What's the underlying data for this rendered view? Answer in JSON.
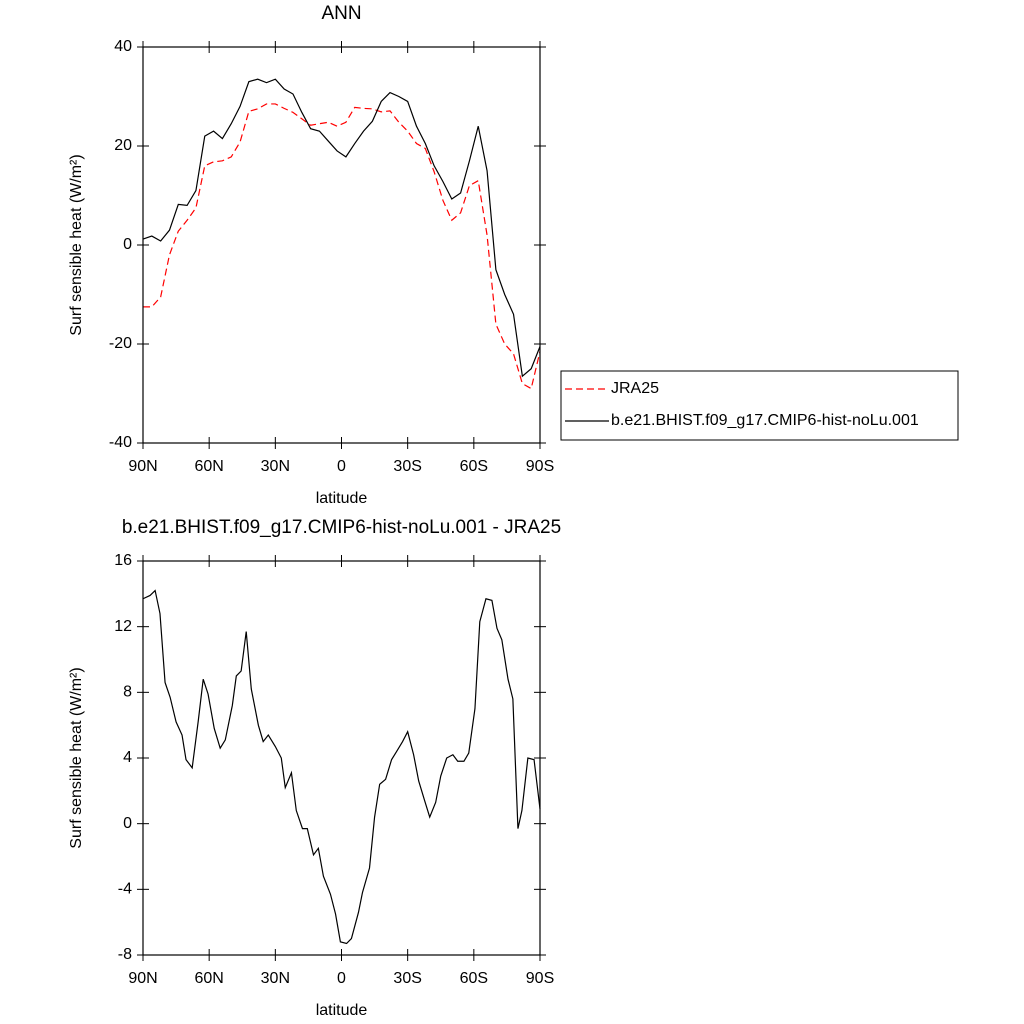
{
  "chart_data": [
    {
      "type": "line",
      "title": "ANN",
      "xlabel": "latitude",
      "ylabel": "Surf sensible heat (W/m²)",
      "x": [
        90,
        86,
        82,
        78,
        74,
        70,
        66,
        62,
        58,
        54,
        50,
        46,
        42,
        38,
        34,
        30,
        26,
        22,
        18,
        14,
        10,
        6,
        2,
        -2,
        -6,
        -10,
        -14,
        -18,
        -22,
        -26,
        -30,
        -34,
        -38,
        -42,
        -46,
        -50,
        -54,
        -58,
        -62,
        -66,
        -70,
        -74,
        -78,
        -82,
        -86,
        -90
      ],
      "series": [
        {
          "name": "JRA25",
          "color": "#ff0000",
          "line_style": "dashed",
          "values": [
            -12.5,
            -12.5,
            -10.5,
            -2,
            2.8,
            5,
            7.5,
            16,
            16.8,
            17,
            17.8,
            20.8,
            27,
            27.5,
            28.5,
            28.5,
            27.6,
            26.8,
            25.5,
            24.2,
            24.5,
            24.8,
            24,
            24.8,
            27.8,
            27.6,
            27.5,
            26.9,
            27.1,
            24.8,
            23,
            20.5,
            19.5,
            14.8,
            9,
            5,
            6.5,
            12,
            13,
            2,
            -16,
            -20,
            -22,
            -28,
            -29,
            -21.5
          ]
        },
        {
          "name": "b.e21.BHIST.f09_g17.CMIP6-hist-noLu.001",
          "color": "#000000",
          "line_style": "solid",
          "values": [
            1.2,
            1.8,
            0.8,
            3,
            8.2,
            8,
            11,
            22,
            23,
            21.5,
            24.5,
            28,
            33,
            33.5,
            32.8,
            33.5,
            31.5,
            30.5,
            26.8,
            23.5,
            23,
            21,
            19,
            17.8,
            20.5,
            23,
            25,
            29,
            30.8,
            30,
            29,
            24,
            20.5,
            16,
            12.8,
            9.3,
            10.5,
            17,
            24,
            15,
            -5,
            -10,
            -14,
            -26.5,
            -25,
            -20.5
          ]
        }
      ],
      "xlim": [
        90,
        -90
      ],
      "xticks": [
        {
          "value": 90,
          "label": "90N"
        },
        {
          "value": 60,
          "label": "60N"
        },
        {
          "value": 30,
          "label": "30N"
        },
        0,
        {
          "value": -30,
          "label": "30S"
        },
        {
          "value": -60,
          "label": "60S"
        },
        {
          "value": -90,
          "label": "90S"
        }
      ],
      "ylim": [
        -40,
        40
      ],
      "yticks": [
        -40,
        -20,
        0,
        20,
        40
      ],
      "legend": "right"
    },
    {
      "type": "line",
      "title": "b.e21.BHIST.f09_g17.CMIP6-hist-noLu.001 - JRA25",
      "xlabel": "latitude",
      "ylabel": "Surf sensible heat (W/m²)",
      "x": [
        90,
        86.8,
        84.5,
        82.3,
        80,
        77.7,
        75,
        72.3,
        70.5,
        67.7,
        65,
        62.7,
        60.5,
        57.7,
        55,
        52.7,
        49.5,
        47.7,
        45.5,
        43.2,
        40.9,
        37.7,
        35.5,
        33.2,
        30,
        27.3,
        25.5,
        22.7,
        20.5,
        17.7,
        15.5,
        12.7,
        10.5,
        8.2,
        5,
        2.7,
        0.5,
        -2.3,
        -4.5,
        -7.7,
        -9.5,
        -12.7,
        -15,
        -17.3,
        -20,
        -22.7,
        -25,
        -27.7,
        -30,
        -32.7,
        -35,
        -37.7,
        -40,
        -42.7,
        -45,
        -47.7,
        -50.5,
        -52.7,
        -55.5,
        -57.7,
        -60.5,
        -62.7,
        -65.5,
        -68.2,
        -70.5,
        -72.7,
        -75.5,
        -77.7,
        -80,
        -81.8,
        -84.5,
        -87.3,
        -90
      ],
      "series": [
        {
          "color": "#000000",
          "line_style": "solid",
          "values": [
            13.7,
            13.9,
            14.2,
            12.8,
            8.6,
            7.7,
            6.2,
            5.4,
            3.9,
            3.4,
            6.2,
            8.8,
            7.9,
            5.8,
            4.6,
            5.1,
            7.2,
            9,
            9.3,
            11.7,
            8.2,
            6,
            5,
            5.4,
            4.7,
            4,
            2.2,
            3.1,
            0.8,
            -0.3,
            -0.3,
            -1.9,
            -1.5,
            -3.2,
            -4.3,
            -5.5,
            -7.2,
            -7.3,
            -7,
            -5.4,
            -4.2,
            -2.7,
            0.4,
            2.4,
            2.7,
            3.9,
            4.4,
            5,
            5.6,
            4.2,
            2.6,
            1.4,
            0.4,
            1.3,
            2.9,
            4,
            4.2,
            3.8,
            3.8,
            4.3,
            7,
            12.3,
            13.7,
            13.6,
            11.9,
            11.2,
            8.8,
            7.6,
            -0.3,
            0.8,
            4,
            3.9,
            0.9
          ]
        }
      ],
      "xlim": [
        90,
        -90
      ],
      "xticks": [
        {
          "value": 90,
          "label": "90N"
        },
        {
          "value": 60,
          "label": "60N"
        },
        {
          "value": 30,
          "label": "30N"
        },
        0,
        {
          "value": -30,
          "label": "30S"
        },
        {
          "value": -60,
          "label": "60S"
        },
        {
          "value": -90,
          "label": "90S"
        }
      ],
      "ylim": [
        -8,
        16
      ],
      "yticks": [
        -8,
        -4,
        0,
        4,
        8,
        12,
        16
      ]
    }
  ]
}
